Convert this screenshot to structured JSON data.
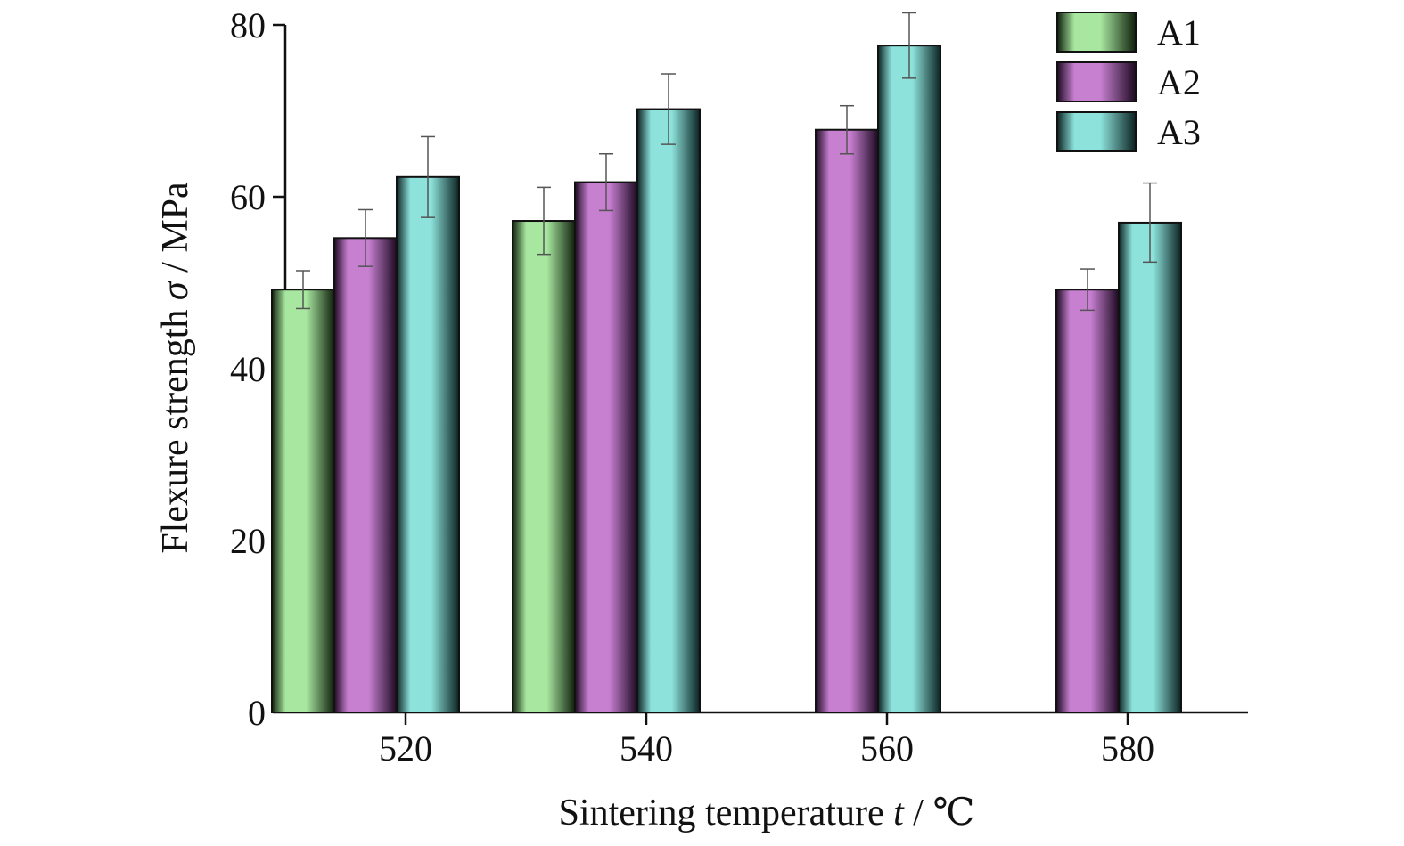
{
  "chart_data": {
    "type": "bar",
    "categories": [
      "520",
      "540",
      "560",
      "580"
    ],
    "series": [
      {
        "name": "A1",
        "values": [
          49.2,
          57.2,
          null,
          null
        ],
        "errors": [
          2.2,
          3.9,
          null,
          null
        ],
        "color_light": "#a8e7a0",
        "color_dark": "#0f1f0c"
      },
      {
        "name": "A2",
        "values": [
          55.2,
          61.7,
          67.8,
          49.2
        ],
        "errors": [
          3.3,
          3.3,
          2.8,
          2.4
        ],
        "color_light": "#c77fd0",
        "color_dark": "#1d0a22"
      },
      {
        "name": "A3",
        "values": [
          62.3,
          70.2,
          77.6,
          57.0
        ],
        "errors": [
          4.7,
          4.1,
          3.8,
          4.6
        ],
        "color_light": "#8de2dc",
        "color_dark": "#0b2221"
      }
    ],
    "xlabel": {
      "prefix": "Sintering temperature ",
      "var": "t",
      "suffix": " / ℃"
    },
    "ylabel": {
      "prefix": "Flexure strength ",
      "var": "σ",
      "suffix": " / MPa"
    },
    "ylim": [
      0,
      80
    ],
    "yticks": [
      "0",
      "20",
      "40",
      "60",
      "80"
    ],
    "grid": false,
    "legend_position": "top-right"
  }
}
